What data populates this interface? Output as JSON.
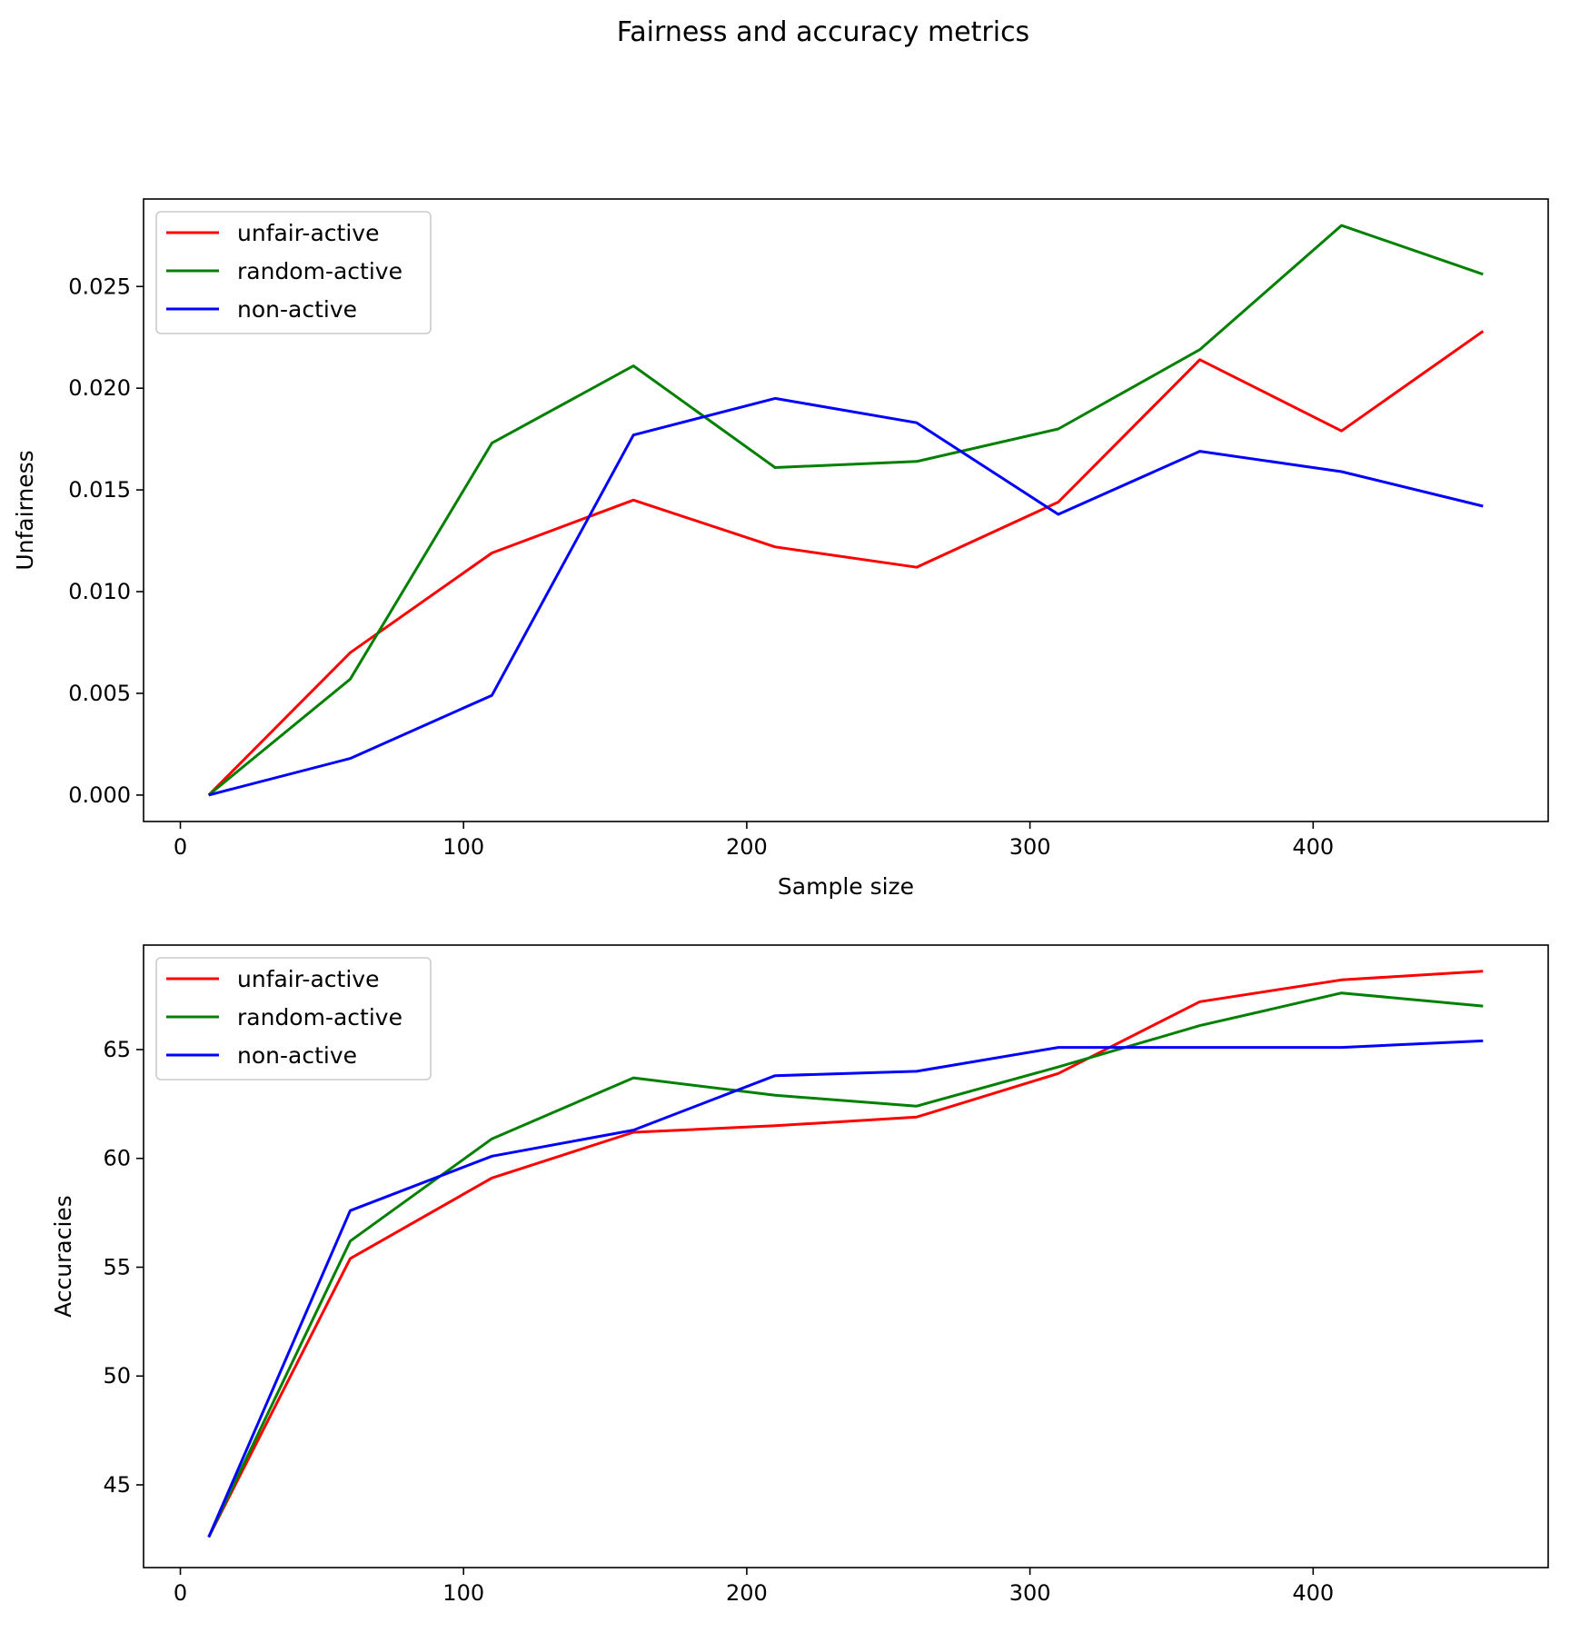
{
  "figure": {
    "title": "Fairness and accuracy metrics"
  },
  "chart_data": [
    {
      "type": "line",
      "title": "",
      "xlabel": "Sample size",
      "ylabel": "Unfairness",
      "x": [
        10,
        60,
        110,
        160,
        210,
        260,
        310,
        360,
        410,
        460
      ],
      "xlim": [
        -13,
        483
      ],
      "ylim": [
        -0.0013,
        0.0293
      ],
      "xticks": [
        0,
        100,
        200,
        300,
        400
      ],
      "xtick_labels": [
        "0",
        "100",
        "200",
        "300",
        "400"
      ],
      "yticks": [
        0,
        0.005,
        0.01,
        0.015,
        0.02,
        0.025
      ],
      "ytick_labels": [
        "0.000",
        "0.005",
        "0.010",
        "0.015",
        "0.020",
        "0.025"
      ],
      "legend_position": "upper-left",
      "grid": false,
      "series": [
        {
          "name": "unfair-active",
          "color": "#ff0000",
          "values": [
            0.0,
            0.007,
            0.0119,
            0.0145,
            0.0122,
            0.0112,
            0.0144,
            0.0214,
            0.0179,
            0.0228
          ]
        },
        {
          "name": "random-active",
          "color": "#008000",
          "values": [
            0.0,
            0.0057,
            0.0173,
            0.0211,
            0.0161,
            0.0164,
            0.018,
            0.0219,
            0.028,
            0.0256
          ]
        },
        {
          "name": "non-active",
          "color": "#0000ff",
          "values": [
            0.0,
            0.0018,
            0.0049,
            0.0177,
            0.0195,
            0.0183,
            0.0138,
            0.0169,
            0.0159,
            0.0142
          ]
        }
      ]
    },
    {
      "type": "line",
      "title": "",
      "xlabel": "",
      "ylabel": "Accuracies",
      "x": [
        10,
        60,
        110,
        160,
        210,
        260,
        310,
        360,
        410,
        460
      ],
      "xlim": [
        -13,
        483
      ],
      "ylim": [
        41.2,
        69.8
      ],
      "xticks": [
        0,
        100,
        200,
        300,
        400
      ],
      "xtick_labels": [
        "0",
        "100",
        "200",
        "300",
        "400"
      ],
      "yticks": [
        45,
        50,
        55,
        60,
        65
      ],
      "ytick_labels": [
        "45",
        "50",
        "55",
        "60",
        "65"
      ],
      "legend_position": "upper-left",
      "grid": false,
      "series": [
        {
          "name": "unfair-active",
          "color": "#ff0000",
          "values": [
            42.6,
            55.4,
            59.1,
            61.2,
            61.5,
            61.9,
            63.9,
            67.2,
            68.2,
            68.6
          ]
        },
        {
          "name": "random-active",
          "color": "#008000",
          "values": [
            42.6,
            56.2,
            60.9,
            63.7,
            62.9,
            62.4,
            64.2,
            66.1,
            67.6,
            67.0
          ]
        },
        {
          "name": "non-active",
          "color": "#0000ff",
          "values": [
            42.6,
            57.6,
            60.1,
            61.3,
            63.8,
            64.0,
            65.1,
            65.1,
            65.1,
            65.4
          ]
        }
      ]
    }
  ]
}
